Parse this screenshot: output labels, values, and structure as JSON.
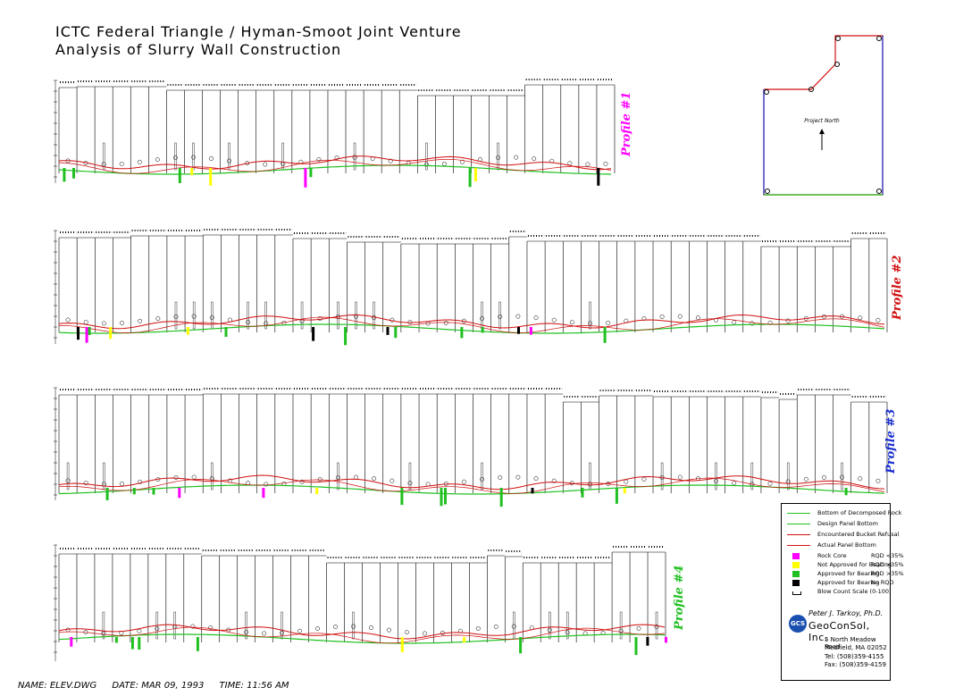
{
  "title": {
    "line1": "ICTC Federal Triangle / Hyman-Smoot Joint Venture",
    "line2": "Analysis of Slurry Wall Construction"
  },
  "footer": {
    "name": "NAME: ELEV.DWG",
    "date": "DATE: MAR 09, 1993",
    "time": "TIME: 11:56 AM"
  },
  "key_plan": {
    "north_label": "Project North"
  },
  "profiles": [
    {
      "label": "Profile #1",
      "color": "#ff00ff"
    },
    {
      "label": "Profile #2",
      "color": "#d01010"
    },
    {
      "label": "Profile #3",
      "color": "#1a2fd0"
    },
    {
      "label": "Profile #4",
      "color": "#20c020"
    }
  ],
  "legend": {
    "lines": [
      {
        "label": "Bottom of Decomposed Rock",
        "color": "#20c020"
      },
      {
        "label": "Design Panel Bottom",
        "color": "#20c020"
      },
      {
        "label": "Encountered Bucket Refusal",
        "color": "#d01010"
      },
      {
        "label": "Actual Panel Bottom",
        "color": "#d01010"
      }
    ],
    "swatches": [
      {
        "label": "Rock Core",
        "rqd": "RQD <35%",
        "color": "#ff00ff"
      },
      {
        "label": "Not Approved for Bearing",
        "rqd": "RQD >35%",
        "color": "#ffff00"
      },
      {
        "label": "Approved for Bearing",
        "rqd": "RQD >35%",
        "color": "#20c020"
      },
      {
        "label": "Approved for Bearing",
        "rqd": "No RQD",
        "color": "#000000"
      },
      {
        "label": "Blow Count Scale (0-100)",
        "rqd": "",
        "color": "#ffffff"
      }
    ]
  },
  "company": {
    "author": "Peter J. Tarkoy, Ph.D.",
    "name": "GeoConSol, Inc.",
    "address1": "5 North Meadow Road",
    "address2": "Medfield, MA 02052",
    "tel": "Tel: (508)359-4155",
    "fax": "Fax: (508)359-4159",
    "logo_text": "GCS"
  }
}
